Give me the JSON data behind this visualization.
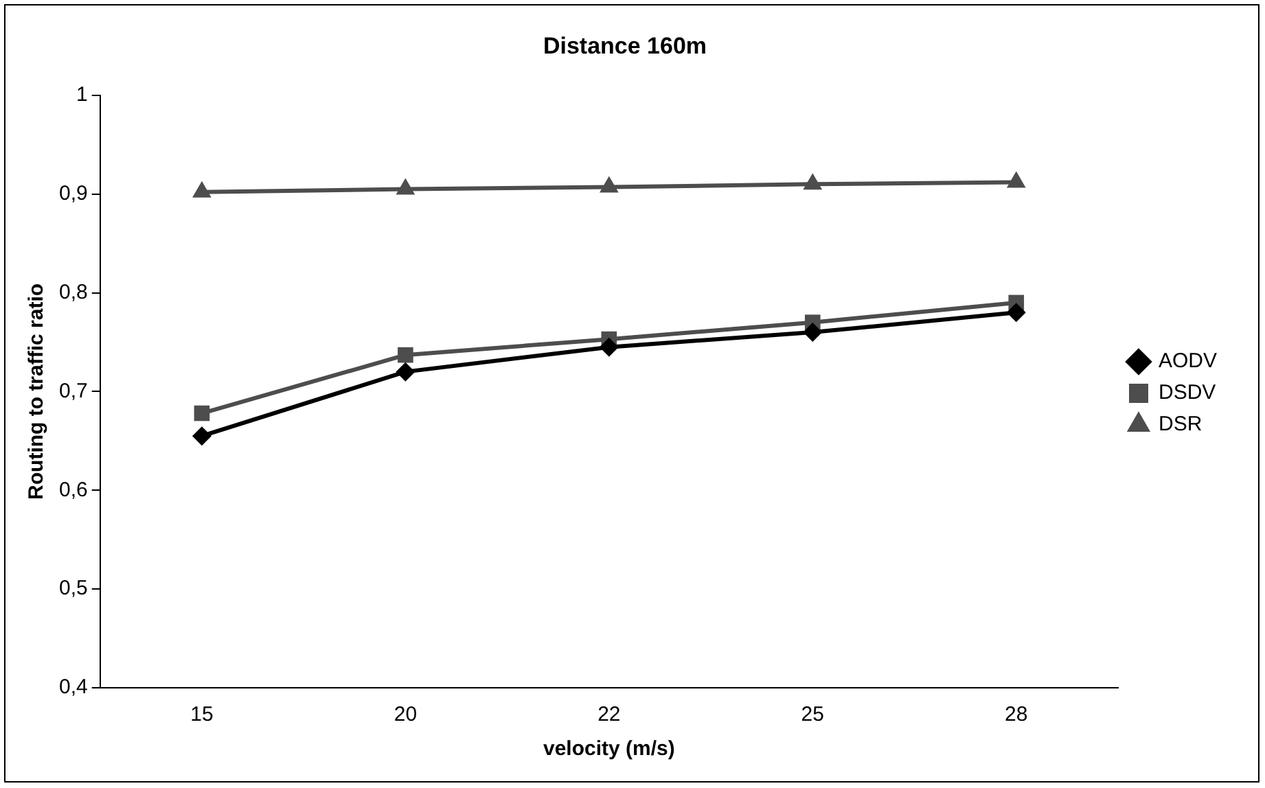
{
  "chart_data": {
    "type": "line",
    "title": "Distance 160m",
    "xlabel": "velocity (m/s)",
    "ylabel": "Routing to traffic ratio",
    "categories": [
      "15",
      "20",
      "22",
      "25",
      "28"
    ],
    "series": [
      {
        "name": "AODV",
        "color": "#000000",
        "marker": "diamond",
        "values": [
          0.655,
          0.72,
          0.745,
          0.76,
          0.78
        ]
      },
      {
        "name": "DSDV",
        "color": "#4d4d4d",
        "marker": "square",
        "values": [
          0.678,
          0.737,
          0.753,
          0.77,
          0.79
        ]
      },
      {
        "name": "DSR",
        "color": "#4d4d4d",
        "marker": "triangle",
        "values": [
          0.902,
          0.905,
          0.907,
          0.91,
          0.912
        ]
      }
    ],
    "ylim": [
      0.4,
      1
    ],
    "yticks": [
      {
        "value": 0.4,
        "label": "0,4"
      },
      {
        "value": 0.5,
        "label": "0,5"
      },
      {
        "value": 0.6,
        "label": "0,6"
      },
      {
        "value": 0.7,
        "label": "0,7"
      },
      {
        "value": 0.8,
        "label": "0,8"
      },
      {
        "value": 0.9,
        "label": "0,9"
      },
      1
    ],
    "grid": false,
    "legend": "right",
    "line_style": "solid"
  }
}
